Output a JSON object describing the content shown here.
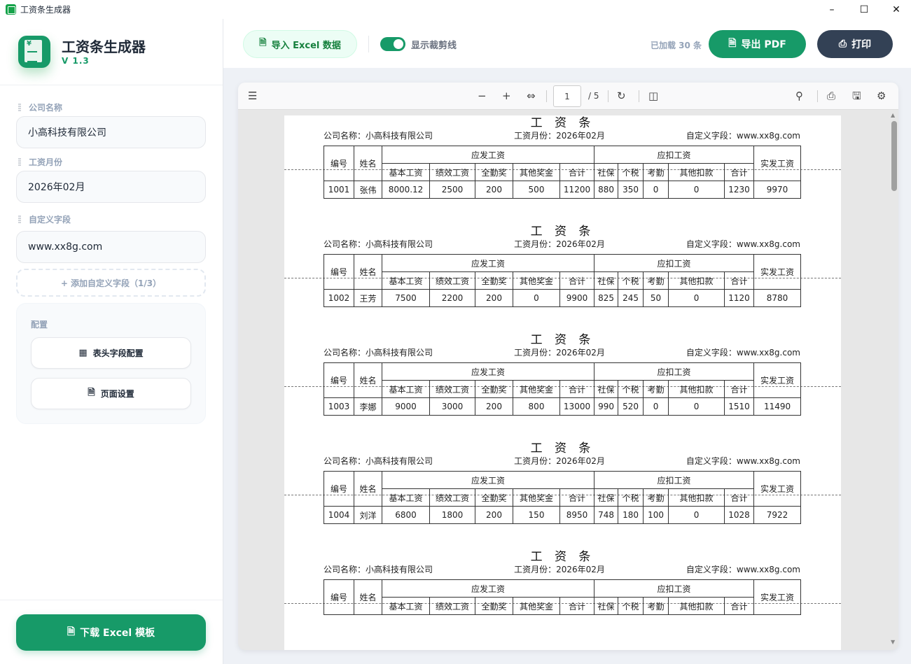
{
  "window": {
    "title": "工资条生成器",
    "min": "–",
    "max": "☐",
    "close": "✕"
  },
  "sidebar": {
    "app_name": "工资条生成器",
    "version": "V 1.3",
    "fields": [
      {
        "label": "公司名称",
        "value": "小高科技有限公司"
      },
      {
        "label": "工资月份",
        "value": "2026年02月"
      },
      {
        "label": "自定义字段",
        "value": "www.xx8g.com"
      }
    ],
    "add_field": "+ 添加自定义字段（1/3）",
    "config": {
      "title": "配置",
      "buttons": [
        {
          "label": "表头字段配置",
          "icon": "table-icon"
        },
        {
          "label": "页面设置",
          "icon": "document-icon"
        }
      ]
    },
    "download": "下载 Excel 模板"
  },
  "toolbar": {
    "import": "导入 Excel 数据",
    "toggle_label": "显示裁剪线",
    "toggle_on": true,
    "loaded": "已加载 30 条",
    "export_pdf": "导出 PDF",
    "print": "打印"
  },
  "viewer": {
    "page": "1",
    "total": "/ 5"
  },
  "accent": "#179a68",
  "slip": {
    "title": "工 资 条",
    "company": "公司名称：小高科技有限公司",
    "month": "工资月份：2026年02月",
    "custom": "自定义字段：www.xx8g.com",
    "h_id": "编号",
    "h_name": "姓名",
    "h_pay": "应发工资",
    "h_ded": "应扣工资",
    "h_net": "实发工资",
    "sub": [
      "基本工资",
      "绩效工资",
      "全勤奖",
      "其他奖金",
      "合计",
      "社保",
      "个税",
      "考勤",
      "其他扣款",
      "合计"
    ]
  },
  "records": [
    [
      "1001",
      "张伟",
      "8000.12",
      "2500",
      "200",
      "500",
      "11200",
      "880",
      "350",
      "0",
      "0",
      "1230",
      "9970"
    ],
    [
      "1002",
      "王芳",
      "7500",
      "2200",
      "200",
      "0",
      "9900",
      "825",
      "245",
      "50",
      "0",
      "1120",
      "8780"
    ],
    [
      "1003",
      "李娜",
      "9000",
      "3000",
      "200",
      "800",
      "13000",
      "990",
      "520",
      "0",
      "0",
      "1510",
      "11490"
    ],
    [
      "1004",
      "刘洋",
      "6800",
      "1800",
      "200",
      "150",
      "8950",
      "748",
      "180",
      "100",
      "0",
      "1028",
      "7922"
    ]
  ]
}
